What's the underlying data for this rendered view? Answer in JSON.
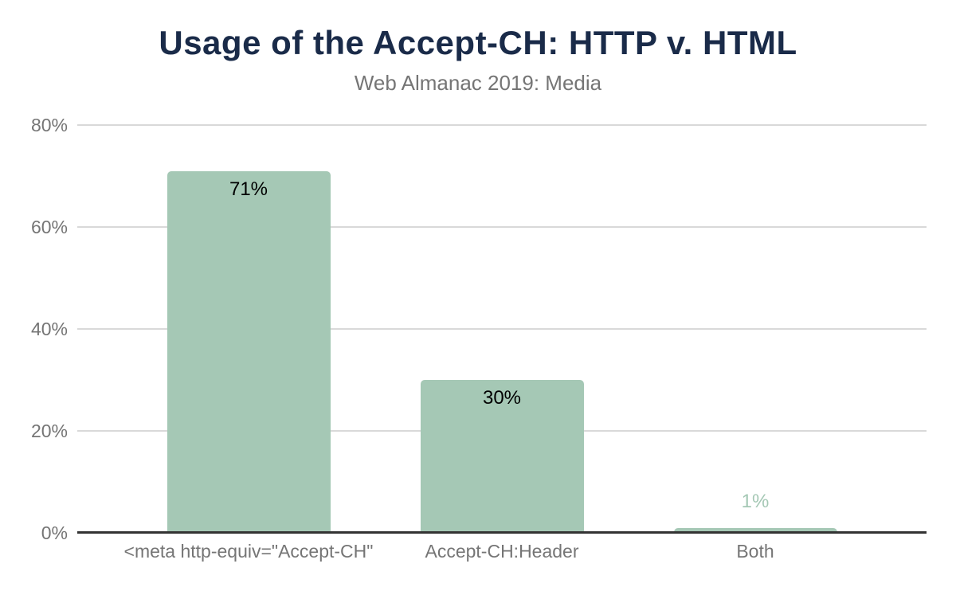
{
  "chart_data": {
    "type": "bar",
    "title": "Usage of the Accept-CH: HTTP v. HTML",
    "subtitle": "Web Almanac 2019: Media",
    "categories": [
      "<meta http-equiv=\"Accept-CH\"",
      "Accept-CH:Header",
      "Both"
    ],
    "values": [
      71,
      30,
      1
    ],
    "value_labels": [
      "71%",
      "30%",
      "1%"
    ],
    "xlabel": "",
    "ylabel": "",
    "ylim": [
      0,
      80
    ],
    "yticks": [
      {
        "value": 0,
        "label": "0%"
      },
      {
        "value": 20,
        "label": "20%"
      },
      {
        "value": 40,
        "label": "40%"
      },
      {
        "value": 60,
        "label": "60%"
      },
      {
        "value": 80,
        "label": "80%"
      }
    ],
    "grid": true,
    "legend": "none",
    "colors": {
      "bar": "#a5c8b5",
      "title": "#1a2b49",
      "subtitle": "#757575",
      "axis_label": "#757575",
      "gridline": "#d9d9d9",
      "baseline": "#333333",
      "value_label_inside": "#000000",
      "value_label_outside": "#a5c8b5"
    }
  }
}
